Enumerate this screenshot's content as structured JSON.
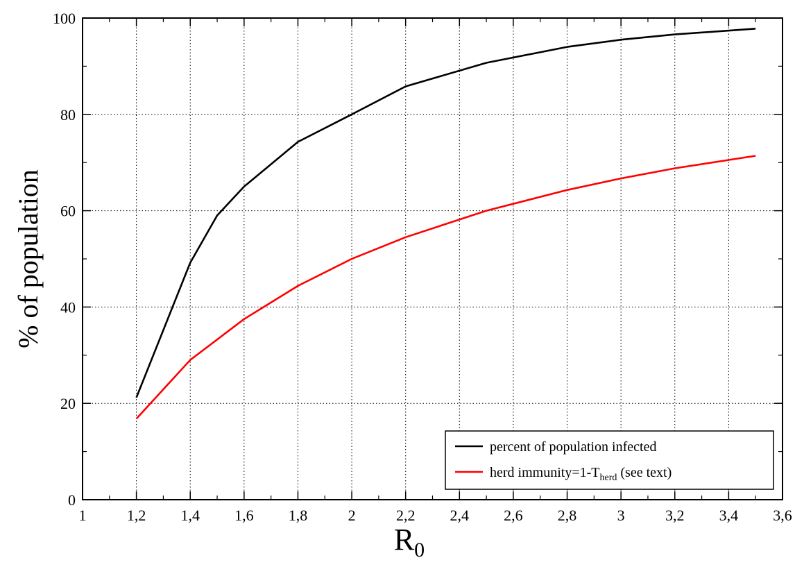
{
  "chart_data": {
    "type": "line",
    "xlabel": "R",
    "xlabel_sub": "0",
    "ylabel": "% of population",
    "xlim": [
      1,
      3.6
    ],
    "ylim": [
      0,
      100
    ],
    "xticks": [
      "1",
      "1,2",
      "1,4",
      "1,6",
      "1,8",
      "2",
      "2,2",
      "2,4",
      "2,6",
      "2,8",
      "3",
      "3,2",
      "3,4",
      "3,6"
    ],
    "yticks": [
      "0",
      "20",
      "40",
      "60",
      "80",
      "100"
    ],
    "grid": true,
    "legend_position": "bottom-right",
    "series": [
      {
        "name": "percent of population infected",
        "color": "#000000",
        "x": [
          1.2,
          1.4,
          1.5,
          1.6,
          1.8,
          2.0,
          2.2,
          2.5,
          2.8,
          3.0,
          3.2,
          3.5
        ],
        "y": [
          21.2,
          49.2,
          59.0,
          65.0,
          74.3,
          80.0,
          85.8,
          90.7,
          94.0,
          95.5,
          96.6,
          97.8
        ]
      },
      {
        "name": "herd immunity=1-T",
        "name_sub": "herd",
        "name_suffix": " (see text)",
        "color": "#ff0000",
        "x": [
          1.2,
          1.4,
          1.6,
          1.8,
          2.0,
          2.2,
          2.5,
          2.8,
          3.0,
          3.2,
          3.5
        ],
        "y": [
          16.8,
          29.0,
          37.5,
          44.4,
          50.0,
          54.5,
          60.0,
          64.3,
          66.7,
          68.8,
          71.4
        ]
      }
    ]
  }
}
